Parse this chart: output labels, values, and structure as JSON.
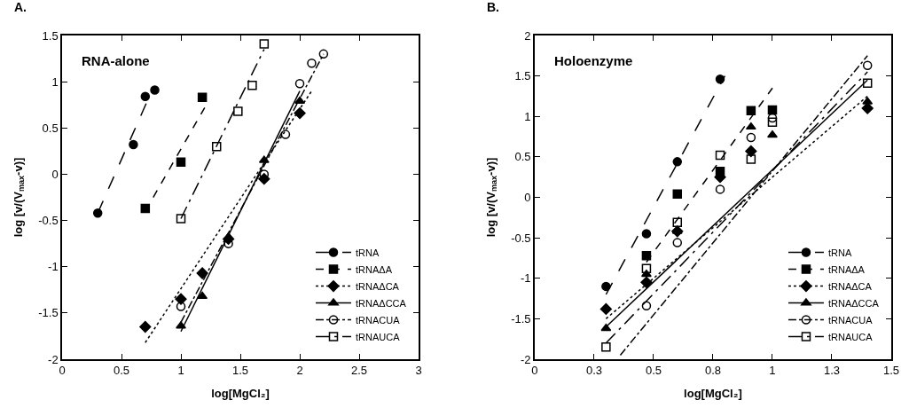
{
  "chart_data": [
    {
      "type": "scatter",
      "title": "A.",
      "annotations": [
        "RNA-alone"
      ],
      "xlabel": "log[MgCl₂]",
      "ylabel": "log [v/(V$_{max}$-v)]",
      "xlim": [
        0,
        3
      ],
      "xticks": [
        0,
        0.5,
        1,
        1.5,
        2,
        2.5,
        3
      ],
      "ylim": [
        -2,
        1.5
      ],
      "yticks": [
        -2,
        -1.5,
        -1,
        -0.5,
        0,
        0.5,
        1,
        1.5
      ],
      "legend": "bottom right",
      "series": [
        {
          "name": "tRNA",
          "color": "#000000",
          "marker": "circle",
          "line_style": "longdash",
          "x": [
            0.3,
            0.6,
            0.7,
            0.78
          ],
          "values": [
            -0.42,
            0.32,
            0.84,
            0.91
          ]
        },
        {
          "name": "tRNAΔA",
          "color": "#000000",
          "marker": "square",
          "line_style": "dashed",
          "x": [
            0.7,
            1.0,
            1.18
          ],
          "values": [
            -0.37,
            0.13,
            0.83
          ]
        },
        {
          "name": "tRNAΔCA",
          "color": "#000000",
          "marker": "diamond",
          "line_style": "dotted",
          "x": [
            0.7,
            1.0,
            1.18,
            1.4,
            1.7,
            2.0
          ],
          "values": [
            -1.65,
            -1.35,
            -1.07,
            -0.7,
            -0.05,
            0.66
          ]
        },
        {
          "name": "tRNAΔCCA",
          "color": "#000000",
          "marker": "triangle",
          "line_style": "solid",
          "x": [
            1.0,
            1.18,
            1.4,
            1.7,
            2.0
          ],
          "values": [
            -1.64,
            -1.32,
            -0.68,
            0.15,
            0.79
          ]
        },
        {
          "name": "tRNACUA",
          "color": "#000000",
          "marker": "circle-open",
          "line_style": "dashdot",
          "x": [
            1.0,
            1.4,
            1.7,
            1.88,
            2.0,
            2.1,
            2.2
          ],
          "values": [
            -1.43,
            -0.75,
            0.0,
            0.43,
            0.98,
            1.2,
            1.3
          ]
        },
        {
          "name": "tRNAUCA",
          "color": "#000000",
          "marker": "square-open",
          "line_style": "longdashdot",
          "x": [
            1.0,
            1.3,
            1.48,
            1.6,
            1.7
          ],
          "values": [
            -0.48,
            0.3,
            0.68,
            0.96,
            1.41
          ]
        },
        {
          "type": "line",
          "color": "#000000",
          "marker": "none",
          "line_style": "longdash",
          "x": [
            0.3,
            0.72
          ],
          "values": [
            -0.42,
            0.8
          ]
        },
        {
          "type": "line",
          "color": "#000000",
          "marker": "none",
          "line_style": "dashed",
          "x": [
            0.7,
            1.2
          ],
          "values": [
            -0.4,
            0.72
          ]
        },
        {
          "type": "line",
          "color": "#000000",
          "marker": "none",
          "line_style": "dotted",
          "x": [
            0.7,
            2.1
          ],
          "values": [
            -1.82,
            0.9
          ]
        },
        {
          "type": "line",
          "color": "#000000",
          "marker": "none",
          "line_style": "solid",
          "x": [
            1.0,
            2.0
          ],
          "values": [
            -1.7,
            0.9
          ]
        },
        {
          "type": "line",
          "color": "#000000",
          "marker": "none",
          "line_style": "dashdot",
          "x": [
            1.0,
            2.2
          ],
          "values": [
            -1.6,
            1.3
          ]
        },
        {
          "type": "line",
          "color": "#000000",
          "marker": "none",
          "line_style": "longdashdot",
          "x": [
            1.0,
            1.7
          ],
          "values": [
            -0.48,
            1.35
          ]
        }
      ]
    },
    {
      "type": "scatter",
      "title": "B.",
      "annotations": [
        "Holoenzyme"
      ],
      "xlabel": "log[MgCl₂]",
      "ylabel": "log [v/(V$_{max}$-v)]",
      "xlim": [
        0,
        1.5
      ],
      "xticks": [
        0,
        {
          "value": 0.25,
          "label": "0.3"
        },
        0.5,
        {
          "value": 0.75,
          "label": "0.8"
        },
        1,
        {
          "value": 1.25,
          "label": "1.3"
        },
        1.5
      ],
      "ylim": [
        -2,
        2
      ],
      "yticks": [
        -2,
        -1.5,
        -1,
        -0.5,
        0,
        0.5,
        1,
        1.5,
        2
      ],
      "legend": "bottom right",
      "series": [
        {
          "name": "tRNA",
          "color": "#000000",
          "marker": "circle",
          "line_style": "longdash",
          "x": [
            0.3,
            0.47,
            0.6,
            0.78
          ],
          "values": [
            -1.1,
            -0.45,
            0.44,
            1.46
          ]
        },
        {
          "name": "tRNAΔA",
          "color": "#000000",
          "marker": "square",
          "line_style": "dashed",
          "x": [
            0.47,
            0.6,
            0.78,
            0.91,
            1.0
          ],
          "values": [
            -0.72,
            0.04,
            0.32,
            1.07,
            1.08
          ]
        },
        {
          "name": "tRNAΔCA",
          "color": "#000000",
          "marker": "diamond",
          "line_style": "dotted",
          "x": [
            0.3,
            0.47,
            0.6,
            0.78,
            0.91,
            1.4
          ],
          "values": [
            -1.38,
            -1.05,
            -0.42,
            0.25,
            0.57,
            1.1
          ]
        },
        {
          "name": "tRNAΔCCA",
          "color": "#000000",
          "marker": "triangle",
          "line_style": "solid",
          "x": [
            0.3,
            0.47,
            0.6,
            0.78,
            0.91,
            1.0,
            1.4
          ],
          "values": [
            -1.62,
            -0.95,
            -0.42,
            null,
            0.87,
            0.77,
            1.18
          ]
        },
        {
          "name": "tRNACUA",
          "color": "#000000",
          "marker": "circle-open",
          "line_style": "dashdot",
          "x": [
            0.47,
            0.6,
            0.78,
            0.91,
            1.0,
            1.4
          ],
          "values": [
            -1.34,
            -0.56,
            0.1,
            0.74,
            0.98,
            1.63
          ]
        },
        {
          "name": "tRNAUCA",
          "color": "#000000",
          "marker": "square-open",
          "line_style": "longdashdot",
          "x": [
            0.3,
            0.47,
            0.6,
            0.78,
            0.91,
            1.0,
            1.4
          ],
          "values": [
            -1.85,
            -0.88,
            -0.31,
            0.52,
            0.47,
            0.93,
            1.41
          ]
        },
        {
          "type": "line",
          "color": "#000000",
          "marker": "none",
          "line_style": "longdash",
          "x": [
            0.3,
            0.8
          ],
          "values": [
            -1.2,
            1.5
          ]
        },
        {
          "type": "line",
          "color": "#000000",
          "marker": "none",
          "line_style": "dashed",
          "x": [
            0.47,
            1.0
          ],
          "values": [
            -0.8,
            1.35
          ]
        },
        {
          "type": "line",
          "color": "#000000",
          "marker": "none",
          "line_style": "dotted",
          "x": [
            0.3,
            1.4
          ],
          "values": [
            -1.5,
            1.25
          ]
        },
        {
          "type": "line",
          "color": "#000000",
          "marker": "none",
          "line_style": "solid",
          "x": [
            0.3,
            1.4
          ],
          "values": [
            -1.6,
            1.45
          ]
        },
        {
          "type": "line",
          "color": "#000000",
          "marker": "none",
          "line_style": "dashdot",
          "x": [
            0.36,
            1.4
          ],
          "values": [
            -1.95,
            1.75
          ]
        },
        {
          "type": "line",
          "color": "#000000",
          "marker": "none",
          "line_style": "longdashdot",
          "x": [
            0.3,
            1.4
          ],
          "values": [
            -1.8,
            1.55
          ]
        }
      ]
    }
  ]
}
